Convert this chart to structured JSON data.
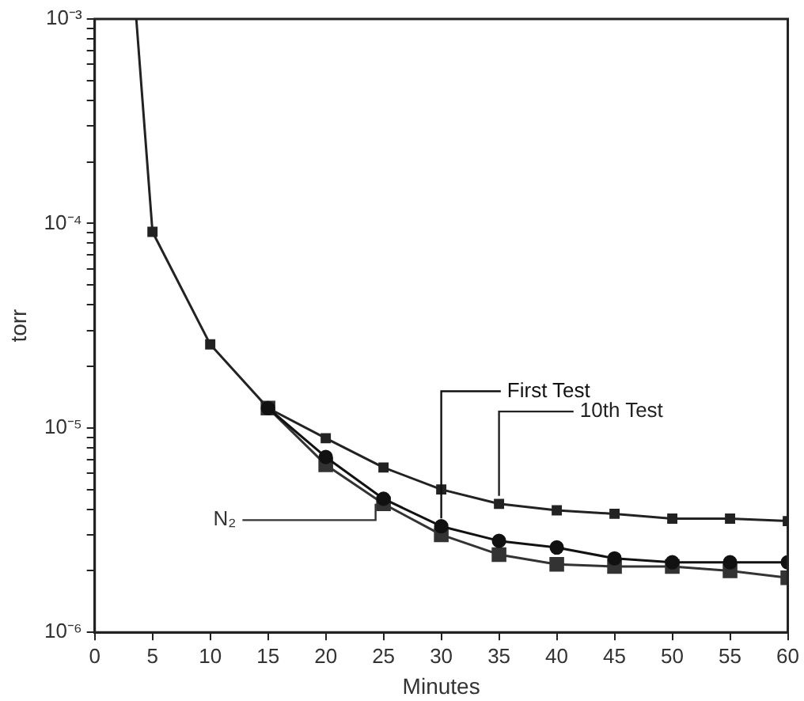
{
  "chart_data": {
    "type": "line",
    "xlabel": "Minutes",
    "ylabel": "torr",
    "log": "y",
    "xlim": [
      0,
      60
    ],
    "xticks": [
      0,
      5,
      10,
      15,
      20,
      25,
      30,
      35,
      40,
      45,
      50,
      55,
      60
    ],
    "ylim": [
      1e-06,
      0.001
    ],
    "yticks": [
      {
        "value": 1e-06,
        "label": "10⁻⁶"
      },
      {
        "value": 2e-06,
        "label": null
      },
      {
        "value": 3e-06,
        "label": null
      },
      {
        "value": 4e-06,
        "label": null
      },
      {
        "value": 5e-06,
        "label": null
      },
      {
        "value": 6e-06,
        "label": null
      },
      {
        "value": 7e-06,
        "label": null
      },
      {
        "value": 8e-06,
        "label": null
      },
      {
        "value": 9e-06,
        "label": null
      },
      {
        "value": 1e-05,
        "label": "10⁻⁵"
      },
      {
        "value": 2e-05,
        "label": null
      },
      {
        "value": 3e-05,
        "label": null
      },
      {
        "value": 4e-05,
        "label": null
      },
      {
        "value": 5e-05,
        "label": null
      },
      {
        "value": 6e-05,
        "label": null
      },
      {
        "value": 7e-05,
        "label": null
      },
      {
        "value": 8e-05,
        "label": null
      },
      {
        "value": 9e-05,
        "label": null
      },
      {
        "value": 0.0001,
        "label": "10⁻⁴"
      },
      {
        "value": 0.0002,
        "label": null
      },
      {
        "value": 0.0003,
        "label": null
      },
      {
        "value": 0.0004,
        "label": null
      },
      {
        "value": 0.0005,
        "label": null
      },
      {
        "value": 0.0006,
        "label": null
      },
      {
        "value": 0.0007,
        "label": null
      },
      {
        "value": 0.0008,
        "label": null
      },
      {
        "value": 0.0009,
        "label": null
      },
      {
        "value": 0.001,
        "label": "10⁻³"
      }
    ],
    "legend": false,
    "line_style": "solid",
    "series": [
      {
        "name": "10th Test",
        "color": "#222222",
        "marker": "square",
        "x": [
          3.6,
          5,
          10,
          15,
          20,
          25,
          30,
          35,
          40,
          45,
          50,
          55,
          60
        ],
        "values": [
          0.001,
          9.1e-05,
          2.56e-05,
          1.25e-05,
          8.9e-06,
          6.4e-06,
          5e-06,
          4.25e-06,
          3.95e-06,
          3.8e-06,
          3.6e-06,
          3.6e-06,
          3.5e-06
        ]
      },
      {
        "name": "First Test",
        "color": "#111111",
        "marker": "circle",
        "x": [
          15,
          20,
          25,
          30,
          35,
          40,
          45,
          50,
          55,
          60
        ],
        "values": [
          1.25e-05,
          7.2e-06,
          4.5e-06,
          3.3e-06,
          2.8e-06,
          2.6e-06,
          2.3e-06,
          2.2e-06,
          2.2e-06,
          2.2e-06
        ]
      },
      {
        "name": "N₂",
        "color": "#333333",
        "marker": "square",
        "x": [
          15,
          20,
          25,
          30,
          35,
          40,
          45,
          50,
          55,
          60
        ],
        "values": [
          1.25e-05,
          6.6e-06,
          4.25e-06,
          3e-06,
          2.4e-06,
          2.15e-06,
          2.1e-06,
          2.1e-06,
          2e-06,
          1.85e-06
        ]
      }
    ]
  }
}
